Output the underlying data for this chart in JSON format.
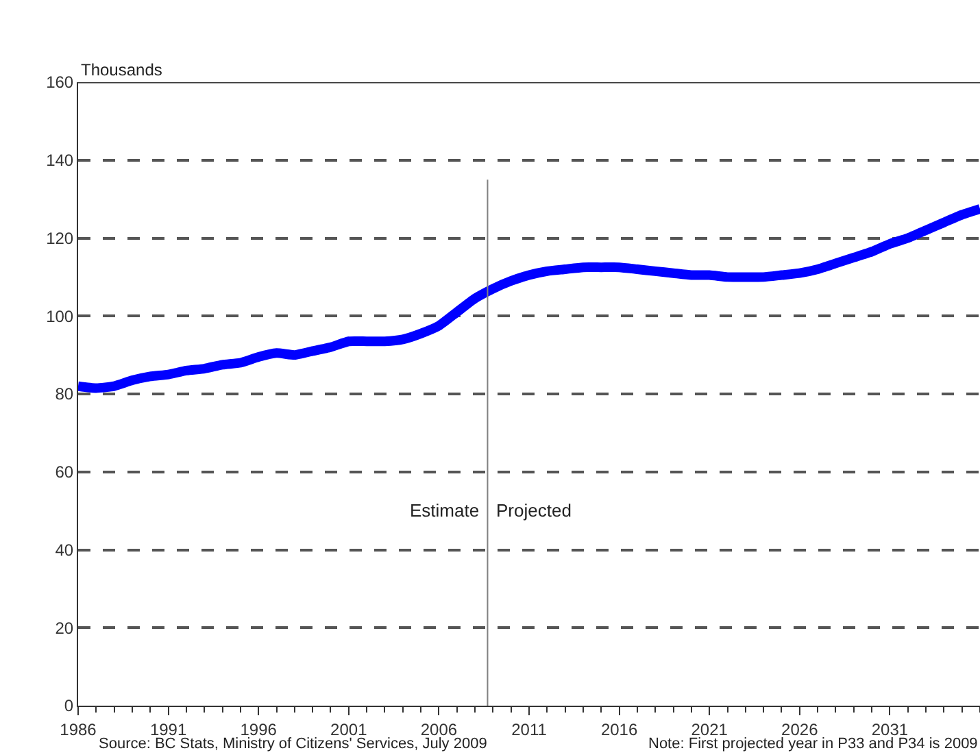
{
  "chart_data": {
    "type": "line",
    "ylabel": "Thousands",
    "x": [
      1986,
      1987,
      1988,
      1989,
      1990,
      1991,
      1992,
      1993,
      1994,
      1995,
      1996,
      1997,
      1998,
      1999,
      2000,
      2001,
      2002,
      2003,
      2004,
      2005,
      2006,
      2007,
      2008,
      2009,
      2010,
      2011,
      2012,
      2013,
      2014,
      2015,
      2016,
      2017,
      2018,
      2019,
      2020,
      2021,
      2022,
      2023,
      2024,
      2025,
      2026,
      2027,
      2028,
      2029,
      2030,
      2031,
      2032,
      2033,
      2034,
      2035,
      2036
    ],
    "series": [
      {
        "color": "#0000ff",
        "values": [
          82,
          81.5,
          82,
          83.5,
          84.5,
          85,
          86,
          86.5,
          87.5,
          88,
          89.5,
          90.5,
          90,
          91,
          92,
          93.5,
          93.5,
          93.5,
          94,
          95.5,
          97.5,
          101,
          104.5,
          107,
          109,
          110.5,
          111.5,
          112,
          112.5,
          112.5,
          112.5,
          112,
          111.5,
          111,
          110.5,
          110.5,
          110,
          110,
          110,
          110.5,
          111,
          112,
          113.5,
          115,
          116.5,
          118.5,
          120,
          122,
          124,
          126,
          127.5
        ]
      }
    ],
    "xlim": [
      1986,
      2036
    ],
    "xticks": [
      1986,
      1991,
      1996,
      2001,
      2006,
      2011,
      2016,
      2021,
      2026,
      2031
    ],
    "ylim": [
      0,
      160
    ],
    "yticks": [
      0,
      20,
      40,
      60,
      80,
      100,
      120,
      140,
      160
    ],
    "grid": "y",
    "marker": "none",
    "line_style": "solid",
    "ref_lines": [
      {
        "axis": "x",
        "value": 2008.7,
        "color": "#808080"
      }
    ],
    "annotations": [
      {
        "text": "Estimate",
        "x": 2008.7,
        "y": 50
      },
      {
        "text": "Projected",
        "x": 2008.7,
        "y": 50
      },
      "Source: BC Stats, Ministry of Citizens' Services, July 2009",
      "Note: First projected year in P33 and P34 is 2009"
    ]
  }
}
